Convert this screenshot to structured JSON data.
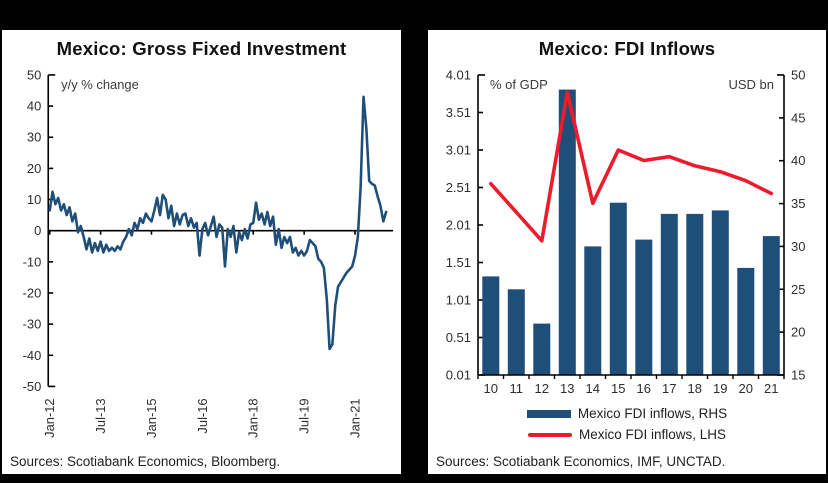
{
  "colors": {
    "navy": "#1f4e79",
    "red": "#ed1c2c",
    "axis": "#000000",
    "text": "#2e2e2e"
  },
  "left_panel": {
    "title": "Mexico: Gross Fixed Investment",
    "unit_label": "y/y % change",
    "sources": "Sources: Scotiabank Economics, Bloomberg.",
    "y_ticks": [
      "50",
      "40",
      "30",
      "20",
      "10",
      "0",
      "-10",
      "-20",
      "-30",
      "-40",
      "-50"
    ],
    "x_ticks": [
      "Jan-12",
      "Jul-13",
      "Jan-15",
      "Jul-16",
      "Jan-18",
      "Jul-19",
      "Jan-21"
    ]
  },
  "right_panel": {
    "title": "Mexico: FDI Inflows",
    "left_axis_label": "% of GDP",
    "right_axis_label": "USD bn",
    "sources": "Sources: Scotiabank Economics, IMF, UNCTAD.",
    "left_ticks": [
      "4.01",
      "3.51",
      "3.01",
      "2.51",
      "2.01",
      "1.51",
      "1.01",
      "0.51",
      "0.01"
    ],
    "right_ticks": [
      "50",
      "45",
      "40",
      "35",
      "30",
      "25",
      "20",
      "15"
    ],
    "x_ticks": [
      "10",
      "11",
      "12",
      "13",
      "14",
      "15",
      "16",
      "17",
      "18",
      "19",
      "20",
      "21"
    ],
    "legend": [
      {
        "label": "Mexico FDI inflows, RHS",
        "swatch": "bar",
        "color": "#1f4e79"
      },
      {
        "label": "Mexico FDI inflows, LHS",
        "swatch": "line",
        "color": "#ed1c2c"
      }
    ]
  },
  "chart_data": [
    {
      "type": "line",
      "title": "Mexico: Gross Fixed Investment",
      "ylabel": "y/y % change",
      "ylim": [
        -50,
        50
      ],
      "x_start": "Jan-2012",
      "x_freq": "monthly",
      "x_tick_labels": [
        "Jan-12",
        "Jul-13",
        "Jan-15",
        "Jul-16",
        "Jan-18",
        "Jul-19",
        "Jan-21"
      ],
      "x_tick_interval_months": 18,
      "values": [
        6.5,
        12.5,
        8.5,
        10.5,
        6.5,
        8.5,
        5,
        7.5,
        3,
        5.5,
        -0.5,
        1.5,
        -2,
        -6,
        -2.5,
        -7,
        -4,
        -6.5,
        -3.5,
        -7,
        -4.5,
        -6.5,
        -5.5,
        -6.5,
        -5,
        -6,
        -3.5,
        -2,
        0.5,
        -1.5,
        2.5,
        0.5,
        4,
        2.5,
        5.5,
        4,
        3,
        6.5,
        10.5,
        5,
        11.5,
        10,
        4,
        8,
        1.5,
        5.5,
        2,
        5,
        5.5,
        1.5,
        4,
        1,
        2.5,
        -8,
        0.5,
        2.5,
        -1.5,
        1.5,
        4.5,
        -2,
        2,
        1,
        -11.5,
        0.5,
        -2,
        1.5,
        -7,
        -0.5,
        -3,
        0.5,
        -2.5,
        2,
        2.5,
        9,
        3.5,
        5.5,
        2,
        6,
        1.5,
        4.5,
        -4.5,
        0.5,
        -5.5,
        -2,
        -4,
        -2,
        -7,
        -5.5,
        -8,
        -6.5,
        -8,
        -6.5,
        -3,
        -4,
        -5,
        -9,
        -10,
        -12,
        -22,
        -38,
        -36.5,
        -24,
        -18,
        -16.5,
        -15,
        -13.5,
        -12.5,
        -11.5,
        -8,
        -2,
        14,
        43,
        33,
        16,
        15,
        14.5,
        11,
        8,
        3,
        6
      ]
    },
    {
      "type": "bar+line",
      "title": "Mexico: FDI Inflows",
      "categories": [
        "10",
        "11",
        "12",
        "13",
        "14",
        "15",
        "16",
        "17",
        "18",
        "19",
        "20",
        "21"
      ],
      "left_ylim": [
        0.01,
        4.01
      ],
      "right_ylim": [
        15,
        50
      ],
      "left_axis_label": "% of GDP",
      "right_axis_label": "USD bn",
      "legend_position": "bottom",
      "series": [
        {
          "name": "Mexico FDI inflows, RHS",
          "type": "bar",
          "axis": "right",
          "unit": "USD bn",
          "values": [
            26.5,
            25.0,
            21.0,
            48.3,
            30.0,
            35.1,
            30.8,
            33.8,
            33.8,
            34.2,
            27.5,
            31.2
          ]
        },
        {
          "name": "Mexico FDI inflows, LHS",
          "type": "line",
          "axis": "left",
          "unit": "% of GDP",
          "values": [
            2.56,
            2.18,
            1.8,
            3.78,
            2.3,
            3.01,
            2.87,
            2.92,
            2.8,
            2.72,
            2.6,
            2.43
          ]
        }
      ]
    }
  ]
}
